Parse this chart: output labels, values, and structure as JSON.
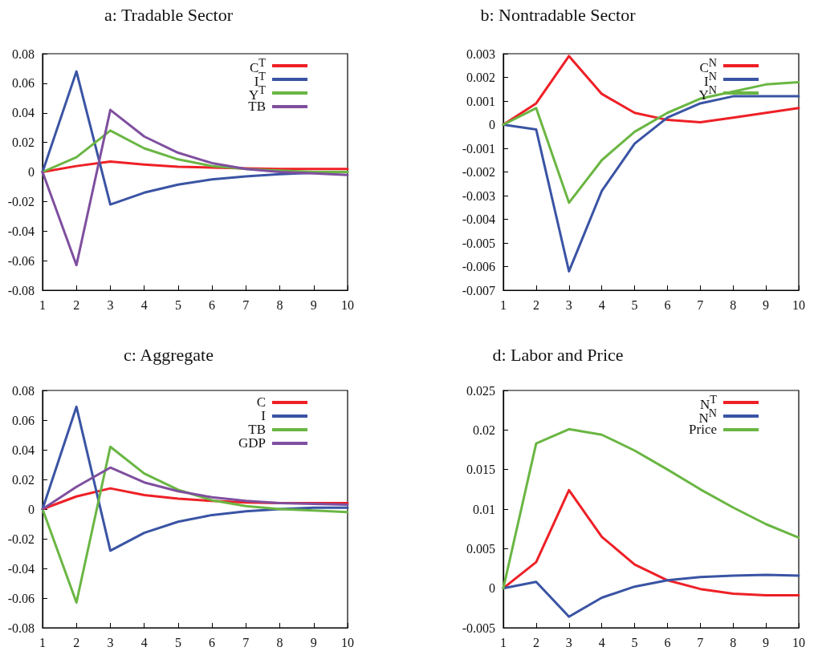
{
  "chart_data": [
    {
      "type": "line",
      "title": "a: Tradable Sector",
      "x": [
        1,
        2,
        3,
        4,
        5,
        6,
        7,
        8,
        9,
        10
      ],
      "xlim": [
        1,
        10
      ],
      "xticks": [
        1,
        2,
        3,
        4,
        5,
        6,
        7,
        8,
        9,
        10
      ],
      "ylim": [
        -0.08,
        0.08
      ],
      "yticks": [
        -0.08,
        -0.06,
        -0.04,
        -0.02,
        0,
        0.02,
        0.04,
        0.06,
        0.08
      ],
      "legend": "top right",
      "marker": "none",
      "series": [
        {
          "name": "C$^{T}$",
          "color": "#ee2026",
          "values": [
            0,
            0.004,
            0.007,
            0.005,
            0.0035,
            0.003,
            0.0025,
            0.002,
            0.002,
            0.002
          ]
        },
        {
          "name": "I$^{T}$",
          "color": "#3a54a4",
          "values": [
            0,
            0.068,
            -0.022,
            -0.014,
            -0.0085,
            -0.005,
            -0.003,
            -0.0015,
            -0.0005,
            0
          ]
        },
        {
          "name": "Y$^{T}$",
          "color": "#6ab643",
          "values": [
            0,
            0.01,
            0.028,
            0.016,
            0.0085,
            0.004,
            0.002,
            0.001,
            0,
            0
          ]
        },
        {
          "name": "TB",
          "color": "#7f4f9f",
          "values": [
            0,
            -0.063,
            0.042,
            0.024,
            0.013,
            0.006,
            0.002,
            0,
            -0.001,
            -0.002
          ]
        }
      ]
    },
    {
      "type": "line",
      "title": "b: Nontradable Sector",
      "x": [
        1,
        2,
        3,
        4,
        5,
        6,
        7,
        8,
        9,
        10
      ],
      "xlim": [
        1,
        10
      ],
      "xticks": [
        1,
        2,
        3,
        4,
        5,
        6,
        7,
        8,
        9,
        10
      ],
      "ylim": [
        -0.007,
        0.003
      ],
      "yticks": [
        -0.007,
        -0.006,
        -0.005,
        -0.004,
        -0.003,
        -0.002,
        -0.001,
        0,
        0.001,
        0.002,
        0.003
      ],
      "legend": "top right",
      "marker": "none",
      "series": [
        {
          "name": "C$^{N}$",
          "color": "#ee2026",
          "values": [
            0,
            0.0009,
            0.0029,
            0.0013,
            0.0005,
            0.0002,
            0.0001,
            0.0003,
            0.0005,
            0.0007
          ]
        },
        {
          "name": "I$^{N}$",
          "color": "#3a54a4",
          "values": [
            0,
            -0.0002,
            -0.0062,
            -0.0028,
            -0.0008,
            0.0003,
            0.0009,
            0.0012,
            0.0012,
            0.0012
          ]
        },
        {
          "name": "Y$^{N}$",
          "color": "#6ab643",
          "values": [
            0,
            0.0007,
            -0.0033,
            -0.0015,
            -0.0003,
            0.0005,
            0.0011,
            0.0014,
            0.0017,
            0.0018
          ]
        }
      ]
    },
    {
      "type": "line",
      "title": "c: Aggregate",
      "x": [
        1,
        2,
        3,
        4,
        5,
        6,
        7,
        8,
        9,
        10
      ],
      "xlim": [
        1,
        10
      ],
      "xticks": [
        1,
        2,
        3,
        4,
        5,
        6,
        7,
        8,
        9,
        10
      ],
      "ylim": [
        -0.08,
        0.08
      ],
      "yticks": [
        -0.08,
        -0.06,
        -0.04,
        -0.02,
        0,
        0.02,
        0.04,
        0.06,
        0.08
      ],
      "legend": "top right",
      "marker": "none",
      "series": [
        {
          "name": "C",
          "color": "#ee2026",
          "values": [
            0,
            0.0085,
            0.014,
            0.0095,
            0.007,
            0.0055,
            0.0045,
            0.004,
            0.004,
            0.004
          ]
        },
        {
          "name": "I",
          "color": "#3a54a4",
          "values": [
            0,
            0.069,
            -0.028,
            -0.016,
            -0.0085,
            -0.004,
            -0.0015,
            0,
            0.001,
            0.001
          ]
        },
        {
          "name": "TB",
          "color": "#6ab643",
          "values": [
            0,
            -0.063,
            0.042,
            0.024,
            0.013,
            0.006,
            0.002,
            0,
            -0.001,
            -0.002
          ]
        },
        {
          "name": "GDP",
          "color": "#7f4f9f",
          "values": [
            0,
            0.015,
            0.028,
            0.018,
            0.012,
            0.008,
            0.0055,
            0.004,
            0.0035,
            0.003
          ]
        }
      ]
    },
    {
      "type": "line",
      "title": "d: Labor and Price",
      "x": [
        1,
        2,
        3,
        4,
        5,
        6,
        7,
        8,
        9,
        10
      ],
      "xlim": [
        1,
        10
      ],
      "xticks": [
        1,
        2,
        3,
        4,
        5,
        6,
        7,
        8,
        9,
        10
      ],
      "ylim": [
        -0.005,
        0.025
      ],
      "yticks": [
        -0.005,
        0,
        0.005,
        0.01,
        0.015,
        0.02,
        0.025
      ],
      "legend": "top right",
      "marker": "none",
      "series": [
        {
          "name": "N$^{T}$",
          "color": "#ee2026",
          "values": [
            0,
            0.0033,
            0.0124,
            0.0065,
            0.003,
            0.001,
            -0.0001,
            -0.0007,
            -0.0009,
            -0.0009
          ]
        },
        {
          "name": "N$^{N}$",
          "color": "#3a54a4",
          "values": [
            0,
            0.0008,
            -0.0036,
            -0.0012,
            0.0002,
            0.001,
            0.0014,
            0.0016,
            0.0017,
            0.0016
          ]
        },
        {
          "name": "Price",
          "color": "#6ab643",
          "values": [
            0,
            0.0183,
            0.0201,
            0.0194,
            0.0174,
            0.015,
            0.0125,
            0.0102,
            0.0081,
            0.0064
          ]
        }
      ]
    }
  ]
}
